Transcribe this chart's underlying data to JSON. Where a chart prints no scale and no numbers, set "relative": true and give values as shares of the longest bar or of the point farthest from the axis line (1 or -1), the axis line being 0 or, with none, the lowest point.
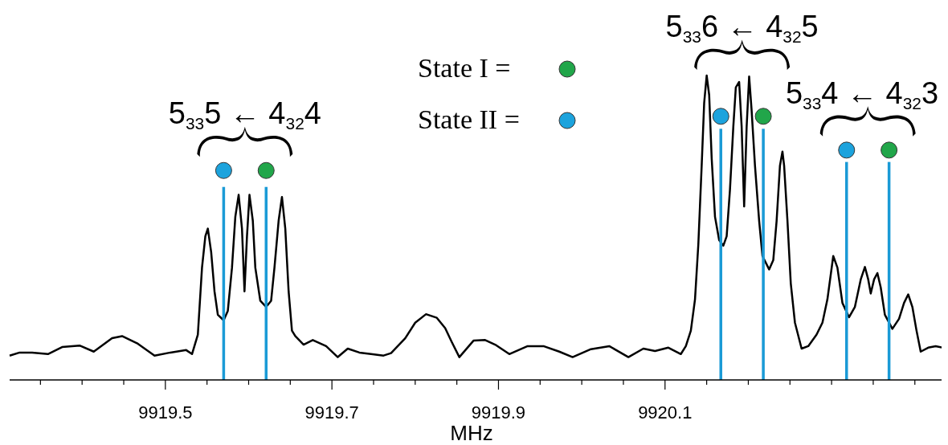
{
  "chart_data": {
    "type": "line",
    "relative": true,
    "xlabel": "MHz",
    "xlim": [
      9919.313,
      9920.434
    ],
    "legend": "top",
    "grid": false,
    "xticks": [
      {
        "value": 9919.35,
        "label": null
      },
      {
        "value": 9919.4,
        "label": null
      },
      {
        "value": 9919.45,
        "label": null
      },
      9919.5,
      {
        "value": 9919.55,
        "label": null
      },
      {
        "value": 9919.6,
        "label": null
      },
      {
        "value": 9919.65,
        "label": null
      },
      9919.7,
      {
        "value": 9919.75,
        "label": null
      },
      {
        "value": 9919.8,
        "label": null
      },
      {
        "value": 9919.85,
        "label": null
      },
      9919.9,
      {
        "value": 9919.95,
        "label": null
      },
      {
        "value": 9920.0,
        "label": null
      },
      {
        "value": 9920.05,
        "label": null
      },
      9920.1,
      {
        "value": 9920.15,
        "label": null
      },
      {
        "value": 9920.2,
        "label": null
      },
      {
        "value": 9920.25,
        "label": null
      },
      {
        "value": 9920.3,
        "label": null
      },
      {
        "value": 9920.35,
        "label": null
      },
      {
        "value": 9920.4,
        "label": null
      }
    ],
    "series": [
      {
        "color": "#000000",
        "x": [
          9919.313,
          9919.325,
          9919.34,
          9919.359,
          9919.376,
          9919.397,
          9919.414,
          9919.436,
          9919.448,
          9919.467,
          9919.487,
          9919.506,
          9919.525,
          9919.532,
          9919.539,
          9919.544,
          9919.548,
          9919.551,
          9919.555,
          9919.559,
          9919.563,
          9919.57,
          9919.575,
          9919.58,
          9919.584,
          9919.588,
          9919.592,
          9919.595,
          9919.598,
          9919.601,
          9919.605,
          9919.608,
          9919.614,
          9919.621,
          9919.627,
          9919.631,
          9919.636,
          9919.64,
          9919.644,
          9919.648,
          9919.652,
          9919.656,
          9919.666,
          9919.677,
          9919.693,
          9919.707,
          9919.719,
          9919.733,
          9919.747,
          9919.762,
          9919.771,
          9919.788,
          9919.8,
          9919.813,
          9919.826,
          9919.836,
          9919.844,
          9919.853,
          9919.87,
          9919.884,
          9919.896,
          9919.913,
          9919.935,
          9919.954,
          9919.973,
          9919.989,
          9920.011,
          9920.033,
          9920.056,
          9920.074,
          9920.088,
          9920.104,
          9920.119,
          9920.125,
          9920.131,
          9920.136,
          9920.14,
          9920.144,
          9920.147,
          9920.15,
          9920.153,
          9920.156,
          9920.16,
          9920.165,
          9920.17,
          9920.174,
          9920.178,
          9920.182,
          9920.185,
          9920.189,
          9920.192,
          9920.195,
          9920.198,
          9920.201,
          9920.204,
          9920.208,
          9920.213,
          9920.217,
          9920.225,
          9920.23,
          9920.234,
          9920.238,
          9920.241,
          9920.243,
          9920.247,
          9920.251,
          9920.256,
          9920.264,
          9920.272,
          9920.282,
          9920.289,
          9920.295,
          9920.302,
          9920.307,
          9920.313,
          9920.321,
          9920.328,
          9920.335,
          9920.34,
          9920.344,
          9920.347,
          9920.351,
          9920.355,
          9920.359,
          9920.364,
          9920.373,
          9920.381,
          9920.387,
          9920.392,
          9920.397,
          9920.402,
          9920.407,
          9920.416,
          9920.425,
          9920.434
        ],
        "values": [
          0.08,
          0.09,
          0.09,
          0.085,
          0.108,
          0.113,
          0.093,
          0.137,
          0.144,
          0.119,
          0.08,
          0.09,
          0.098,
          0.085,
          0.149,
          0.369,
          0.472,
          0.497,
          0.42,
          0.291,
          0.214,
          0.196,
          0.227,
          0.369,
          0.536,
          0.608,
          0.497,
          0.291,
          0.472,
          0.608,
          0.523,
          0.369,
          0.26,
          0.24,
          0.26,
          0.369,
          0.523,
          0.601,
          0.497,
          0.291,
          0.162,
          0.144,
          0.116,
          0.131,
          0.111,
          0.075,
          0.103,
          0.09,
          0.085,
          0.08,
          0.088,
          0.137,
          0.188,
          0.216,
          0.204,
          0.17,
          0.124,
          0.075,
          0.129,
          0.131,
          0.116,
          0.085,
          0.111,
          0.111,
          0.093,
          0.075,
          0.101,
          0.111,
          0.075,
          0.103,
          0.095,
          0.106,
          0.085,
          0.111,
          0.162,
          0.265,
          0.446,
          0.704,
          0.91,
          1.0,
          0.936,
          0.729,
          0.536,
          0.459,
          0.441,
          0.472,
          0.626,
          0.832,
          0.961,
          0.979,
          0.832,
          0.57,
          0.832,
          0.997,
          0.884,
          0.704,
          0.523,
          0.407,
          0.363,
          0.394,
          0.523,
          0.704,
          0.75,
          0.704,
          0.523,
          0.317,
          0.188,
          0.103,
          0.111,
          0.149,
          0.188,
          0.265,
          0.407,
          0.369,
          0.253,
          0.206,
          0.24,
          0.33,
          0.371,
          0.33,
          0.284,
          0.33,
          0.351,
          0.304,
          0.214,
          0.168,
          0.201,
          0.253,
          0.281,
          0.24,
          0.162,
          0.093,
          0.106,
          0.111,
          0.106
        ]
      },
      {
        "type": "bar",
        "color": "#1a9ad6",
        "x": [
          9919.57,
          9919.621,
          9920.167,
          9920.218,
          9920.318,
          9920.369
        ],
        "values": [
          0.634,
          0.634,
          0.825,
          0.825,
          0.716,
          0.716
        ]
      },
      {
        "type": "scatter",
        "name": "State I =",
        "color": "#21a64a",
        "x": [
          9919.621,
          9920.218,
          9920.369
        ],
        "values": [
          0.688,
          0.866,
          0.755
        ]
      },
      {
        "type": "scatter",
        "name": "State II =",
        "color": "#1ca3dd",
        "x": [
          9919.57,
          9920.167,
          9920.318
        ],
        "values": [
          0.688,
          0.866,
          0.755
        ]
      }
    ],
    "annotations": [
      "5$_{33}$5 ← 4$_{32}$4",
      "5$_{33}$6 ← 4$_{32}$5",
      "5$_{33}$4 ← 4$_{32}$3"
    ]
  }
}
